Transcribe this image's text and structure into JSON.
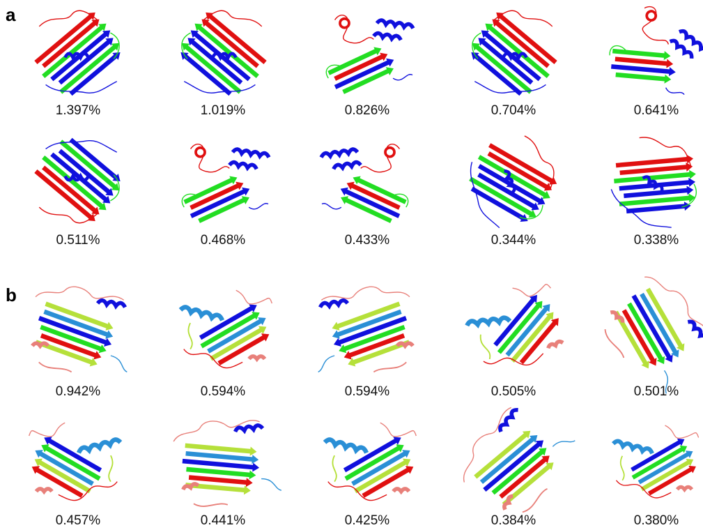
{
  "panels": [
    {
      "label": "a",
      "rows": [
        [
          "1.397%",
          "1.019%",
          "0.826%",
          "0.704%",
          "0.641%"
        ],
        [
          "0.511%",
          "0.468%",
          "0.433%",
          "0.344%",
          "0.338%"
        ]
      ]
    },
    {
      "label": "b",
      "rows": [
        [
          "0.942%",
          "0.594%",
          "0.594%",
          "0.505%",
          "0.501%"
        ],
        [
          "0.457%",
          "0.441%",
          "0.425%",
          "0.384%",
          "0.380%"
        ]
      ]
    }
  ]
}
